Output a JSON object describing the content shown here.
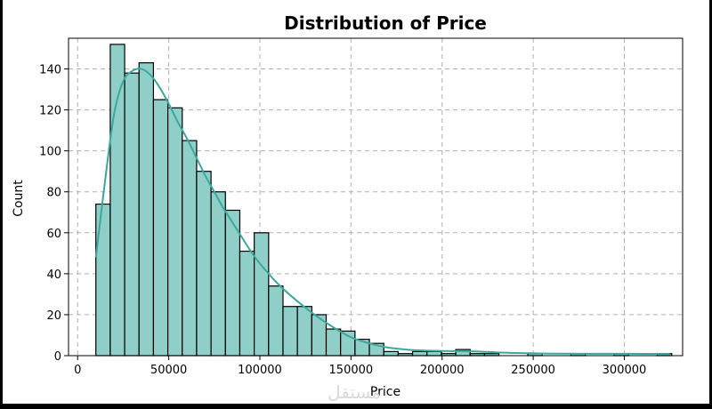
{
  "chart_data": {
    "type": "bar",
    "title": "Distribution of Price",
    "xlabel": "Price",
    "ylabel": "Count",
    "xlim": [
      -5000,
      332000
    ],
    "ylim": [
      0,
      155
    ],
    "x_ticks": [
      0,
      50000,
      100000,
      150000,
      200000,
      250000,
      300000
    ],
    "y_ticks": [
      0,
      20,
      40,
      60,
      80,
      100,
      120,
      140
    ],
    "grid": true,
    "bar_color": "#8fcfc8",
    "bar_edge_color": "#000000",
    "kde_color": "#3aa89c",
    "bins": [
      {
        "x0": 10000,
        "x1": 17900,
        "count": 74
      },
      {
        "x0": 17900,
        "x1": 25800,
        "count": 152
      },
      {
        "x0": 25800,
        "x1": 33700,
        "count": 138
      },
      {
        "x0": 33700,
        "x1": 41600,
        "count": 143
      },
      {
        "x0": 41600,
        "x1": 49500,
        "count": 125
      },
      {
        "x0": 49500,
        "x1": 57400,
        "count": 121
      },
      {
        "x0": 57400,
        "x1": 65300,
        "count": 105
      },
      {
        "x0": 65300,
        "x1": 73200,
        "count": 90
      },
      {
        "x0": 73200,
        "x1": 81100,
        "count": 80
      },
      {
        "x0": 81100,
        "x1": 89000,
        "count": 71
      },
      {
        "x0": 89000,
        "x1": 96900,
        "count": 51
      },
      {
        "x0": 96900,
        "x1": 104800,
        "count": 60
      },
      {
        "x0": 104800,
        "x1": 112700,
        "count": 34
      },
      {
        "x0": 112700,
        "x1": 120600,
        "count": 24
      },
      {
        "x0": 120600,
        "x1": 128500,
        "count": 24
      },
      {
        "x0": 128500,
        "x1": 136400,
        "count": 20
      },
      {
        "x0": 136400,
        "x1": 144300,
        "count": 13
      },
      {
        "x0": 144300,
        "x1": 152200,
        "count": 12
      },
      {
        "x0": 152200,
        "x1": 160100,
        "count": 8
      },
      {
        "x0": 160100,
        "x1": 168000,
        "count": 6
      },
      {
        "x0": 168000,
        "x1": 175900,
        "count": 2
      },
      {
        "x0": 175900,
        "x1": 183800,
        "count": 1
      },
      {
        "x0": 183800,
        "x1": 191700,
        "count": 2
      },
      {
        "x0": 191700,
        "x1": 199600,
        "count": 2
      },
      {
        "x0": 199600,
        "x1": 207500,
        "count": 1
      },
      {
        "x0": 207500,
        "x1": 215400,
        "count": 3
      },
      {
        "x0": 215400,
        "x1": 223300,
        "count": 1
      },
      {
        "x0": 223300,
        "x1": 231200,
        "count": 1
      },
      {
        "x0": 231200,
        "x1": 239100,
        "count": 0
      },
      {
        "x0": 239100,
        "x1": 247000,
        "count": 0
      },
      {
        "x0": 247000,
        "x1": 254900,
        "count": 1
      },
      {
        "x0": 254900,
        "x1": 262800,
        "count": 0
      },
      {
        "x0": 262800,
        "x1": 270700,
        "count": 0
      },
      {
        "x0": 270700,
        "x1": 278600,
        "count": 1
      },
      {
        "x0": 278600,
        "x1": 286500,
        "count": 0
      },
      {
        "x0": 286500,
        "x1": 294400,
        "count": 0
      },
      {
        "x0": 294400,
        "x1": 302300,
        "count": 1
      },
      {
        "x0": 302300,
        "x1": 310200,
        "count": 0
      },
      {
        "x0": 310200,
        "x1": 318100,
        "count": 0
      },
      {
        "x0": 318100,
        "x1": 326000,
        "count": 1
      }
    ],
    "kde": {
      "x": [
        10000,
        15000,
        20000,
        25000,
        30000,
        35000,
        40000,
        45000,
        50000,
        55000,
        60000,
        65000,
        70000,
        75000,
        80000,
        85000,
        90000,
        95000,
        100000,
        110000,
        120000,
        130000,
        140000,
        150000,
        160000,
        170000,
        180000,
        190000,
        200000,
        210000,
        220000,
        230000,
        240000,
        260000,
        280000,
        300000,
        325000
      ],
      "y": [
        48,
        85,
        118,
        134,
        139,
        140,
        137,
        131,
        123,
        114,
        106,
        97,
        88,
        80,
        72,
        65,
        58,
        51,
        45,
        35,
        27,
        20,
        14,
        9,
        6,
        4,
        3,
        2.5,
        2.3,
        2.2,
        2,
        1.6,
        1.3,
        1,
        0.9,
        0.9,
        0.8
      ]
    }
  },
  "watermark": "مستقل"
}
